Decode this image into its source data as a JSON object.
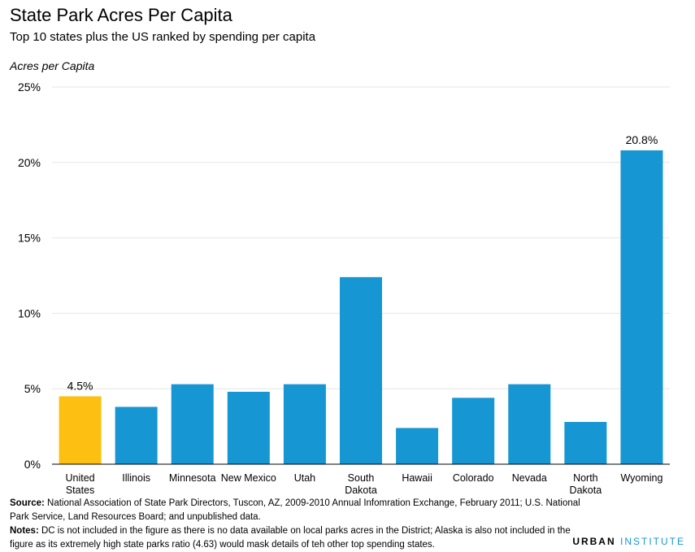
{
  "header": {
    "title": "State Park Acres Per Capita",
    "subtitle": "Top 10 states plus the US ranked by spending per capita",
    "ylabel": "Acres per Capita"
  },
  "footer": {
    "source_label": "Source:",
    "source_text": "National Association of State Park Directors, Tuscon, AZ, 2009-2010 Annual Infomration Exchange, February 2011; U.S. National Park Service, Land Resources Board; and unpublished data.",
    "notes_label": "Notes:",
    "notes_text": "DC is not included in the figure as there is no data available on local parks acres in the District; Alaska is also not included in the figure as its extremely high state parks ratio (4.63) would mask details of teh other top spending states."
  },
  "logo": {
    "part1": "URBAN",
    "part2": "INSTITUTE"
  },
  "colors": {
    "highlight": "#fdbf11",
    "bar": "#1696d2",
    "grid": "#e6e6e6",
    "axis": "#000000"
  },
  "chart_data": {
    "type": "bar",
    "categories": [
      "United States",
      "Illinois",
      "Minnesota",
      "New Mexico",
      "Utah",
      "South Dakota",
      "Hawaii",
      "Colorado",
      "Nevada",
      "North Dakota",
      "Wyoming"
    ],
    "category_lines": [
      [
        "United",
        "States"
      ],
      [
        "Illinois"
      ],
      [
        "Minnesota"
      ],
      [
        "New Mexico"
      ],
      [
        "Utah"
      ],
      [
        "South",
        "Dakota"
      ],
      [
        "Hawaii"
      ],
      [
        "Colorado"
      ],
      [
        "Nevada"
      ],
      [
        "North",
        "Dakota"
      ],
      [
        "Wyoming"
      ]
    ],
    "values": [
      4.5,
      3.8,
      5.3,
      4.8,
      5.3,
      12.4,
      2.4,
      4.4,
      5.3,
      2.8,
      20.8
    ],
    "data_labels": {
      "0": "4.5%",
      "10": "20.8%"
    },
    "highlight_index": 0,
    "ylim": [
      0,
      25
    ],
    "yticks": [
      0,
      5,
      10,
      15,
      20,
      25
    ],
    "ytick_labels": [
      "0%",
      "5%",
      "10%",
      "15%",
      "20%",
      "25%"
    ],
    "grid": true
  }
}
